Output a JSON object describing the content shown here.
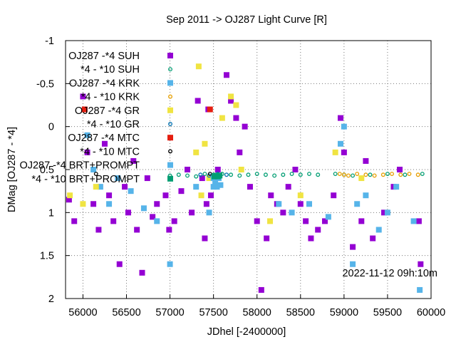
{
  "chart_data": {
    "type": "scatter",
    "title": "Sep 2011 ->   OJ287 Light Curve [R]",
    "xlabel": "JDhel [-2400000]",
    "ylabel": "DMag [OJ287 - *4]",
    "xlim": [
      55800,
      60000
    ],
    "ylim": [
      2,
      -1
    ],
    "y_inverted": true,
    "grid": true,
    "grid_style": "dotted",
    "legend_position": "top-left-inside",
    "x_ticks": [
      "56000",
      "56500",
      "57000",
      "57500",
      "58000",
      "58500",
      "59000",
      "59500",
      "60000"
    ],
    "y_ticks": [
      "-1",
      "-0.5",
      "0",
      "0.5",
      "1",
      "1.5",
      "2"
    ],
    "timestamp": "2022-11-12 09h:10m",
    "series": [
      {
        "name": "OJ287 -*4 SUH",
        "marker": "square",
        "color": "#9400d3",
        "points": [
          [
            55840,
            0.85
          ],
          [
            55900,
            1.1
          ],
          [
            56000,
            -0.35
          ],
          [
            56050,
            0.3
          ],
          [
            56120,
            0.9
          ],
          [
            56180,
            1.2
          ],
          [
            56250,
            0.2
          ],
          [
            56300,
            0.8
          ],
          [
            56350,
            1.1
          ],
          [
            56420,
            1.6
          ],
          [
            56480,
            0.7
          ],
          [
            56520,
            1.0
          ],
          [
            56580,
            0.4
          ],
          [
            56620,
            1.2
          ],
          [
            56680,
            1.7
          ],
          [
            56740,
            0.6
          ],
          [
            56800,
            1.05
          ],
          [
            56850,
            0.9
          ],
          [
            56950,
            0.8
          ],
          [
            56990,
            1.2
          ],
          [
            57050,
            1.1
          ],
          [
            57130,
            0.75
          ],
          [
            57200,
            0.5
          ],
          [
            57250,
            1.0
          ],
          [
            57320,
            -0.3
          ],
          [
            57370,
            0.6
          ],
          [
            57400,
            1.3
          ],
          [
            57420,
            0.9
          ],
          [
            57440,
            -0.2
          ],
          [
            57470,
            0.8
          ],
          [
            57550,
            0.5
          ],
          [
            57650,
            -0.6
          ],
          [
            57700,
            -0.3
          ],
          [
            57760,
            -0.1
          ],
          [
            57800,
            0.3
          ],
          [
            57860,
            0.0
          ],
          [
            57920,
            0.7
          ],
          [
            58000,
            1.1
          ],
          [
            58050,
            1.9
          ],
          [
            58110,
            1.3
          ],
          [
            58160,
            0.8
          ],
          [
            58230,
            0.9
          ],
          [
            58300,
            1.0
          ],
          [
            58360,
            0.7
          ],
          [
            58440,
            0.5
          ],
          [
            58500,
            0.9
          ],
          [
            58560,
            1.1
          ],
          [
            58620,
            1.3
          ],
          [
            58700,
            1.2
          ],
          [
            58780,
            1.1
          ],
          [
            58880,
            0.8
          ],
          [
            58960,
            -0.1
          ],
          [
            59000,
            0.3
          ],
          [
            59100,
            1.4
          ],
          [
            59200,
            1.1
          ],
          [
            59250,
            0.4
          ],
          [
            59330,
            1.3
          ],
          [
            59460,
            1.0
          ],
          [
            59570,
            0.7
          ],
          [
            59640,
            0.5
          ],
          [
            59860,
            1.1
          ],
          [
            59880,
            1.6
          ]
        ]
      },
      {
        "name": "*4 - *10 SUH",
        "marker": "circle-open",
        "color": "#009e73",
        "points": [
          [
            57000,
            0.57
          ],
          [
            57100,
            0.56
          ],
          [
            57200,
            0.57
          ],
          [
            57300,
            0.58
          ],
          [
            57400,
            0.55
          ],
          [
            57500,
            0.56
          ],
          [
            57600,
            0.55
          ],
          [
            57700,
            0.56
          ],
          [
            57800,
            0.57
          ],
          [
            57900,
            0.56
          ],
          [
            58000,
            0.55
          ],
          [
            58100,
            0.56
          ],
          [
            58200,
            0.57
          ],
          [
            58300,
            0.56
          ],
          [
            58400,
            0.55
          ],
          [
            58500,
            0.56
          ],
          [
            58600,
            0.55
          ],
          [
            58700,
            0.56
          ],
          [
            58900,
            0.55
          ],
          [
            59000,
            0.56
          ],
          [
            59100,
            0.57
          ],
          [
            59300,
            0.56
          ],
          [
            59500,
            0.55
          ],
          [
            59700,
            0.56
          ],
          [
            59900,
            0.55
          ]
        ]
      },
      {
        "name": "OJ287 -*4 KRK",
        "marker": "square",
        "color": "#56b4e9",
        "points": [
          [
            56050,
            0.1
          ],
          [
            56120,
            0.5
          ],
          [
            56200,
            0.7
          ],
          [
            56300,
            0.9
          ],
          [
            56400,
            0.6
          ],
          [
            56550,
            0.75
          ],
          [
            56700,
            0.95
          ],
          [
            56850,
            1.1
          ],
          [
            57000,
            1.6
          ],
          [
            57300,
            0.7
          ],
          [
            57450,
            1.0
          ],
          [
            57500,
            0.7
          ],
          [
            58250,
            0.9
          ],
          [
            58400,
            1.0
          ],
          [
            58600,
            0.9
          ],
          [
            58820,
            1.05
          ],
          [
            58960,
            0.2
          ],
          [
            59000,
            0.0
          ],
          [
            59100,
            1.6
          ],
          [
            59150,
            0.9
          ],
          [
            59250,
            0.8
          ],
          [
            59400,
            1.2
          ],
          [
            59500,
            1.0
          ],
          [
            59600,
            0.7
          ],
          [
            59800,
            1.1
          ],
          [
            59870,
            1.9
          ]
        ]
      },
      {
        "name": "*4 - *10 KRK",
        "marker": "circle-open",
        "color": "#e69f00",
        "points": [
          [
            58950,
            0.55
          ],
          [
            59000,
            0.56
          ],
          [
            59050,
            0.57
          ],
          [
            59150,
            0.55
          ],
          [
            59250,
            0.56
          ],
          [
            59350,
            0.57
          ],
          [
            59450,
            0.56
          ],
          [
            59550,
            0.55
          ],
          [
            59650,
            0.56
          ],
          [
            59750,
            0.55
          ],
          [
            59850,
            0.56
          ]
        ]
      },
      {
        "name": "OJ287 -*4 GR",
        "marker": "square",
        "color": "#f0e442",
        "points": [
          [
            55850,
            0.8
          ],
          [
            56000,
            0.9
          ],
          [
            56150,
            0.7
          ],
          [
            57300,
            0.3
          ],
          [
            57330,
            -0.7
          ],
          [
            57360,
            0.8
          ],
          [
            57400,
            0.2
          ],
          [
            57450,
            0.6
          ],
          [
            57600,
            -0.1
          ],
          [
            57700,
            -0.35
          ],
          [
            57760,
            -0.25
          ],
          [
            57820,
            0.5
          ],
          [
            58150,
            1.1
          ],
          [
            58500,
            0.8
          ],
          [
            58900,
            0.3
          ],
          [
            59200,
            0.6
          ]
        ]
      },
      {
        "name": "*4 - *10 GR",
        "marker": "circle-open",
        "color": "#0072b2",
        "points": [
          [
            57350,
            0.56
          ],
          [
            57450,
            0.57
          ],
          [
            57550,
            0.55
          ],
          [
            57650,
            0.56
          ]
        ]
      },
      {
        "name": "OJ287 -*4 MTC",
        "marker": "square",
        "color": "#e51e10",
        "points": [
          [
            56020,
            -0.2
          ],
          [
            57460,
            -0.2
          ]
        ]
      },
      {
        "name": "*4 - *10 MTC",
        "marker": "circle-open",
        "color": "#000000",
        "points": [
          [
            57460,
            0.55
          ],
          [
            56150,
            0.55
          ]
        ]
      },
      {
        "name": "OJ287 -*4 BRT+PROMPT",
        "marker": "square",
        "color": "#56b4e9",
        "points": [
          [
            57500,
            0.6
          ],
          [
            57520,
            0.65
          ],
          [
            57540,
            0.7
          ],
          [
            57560,
            0.6
          ],
          [
            57580,
            0.68
          ]
        ]
      },
      {
        "name": "*4 - *10 BRT+PROMPT",
        "marker": "square",
        "color": "#009e73",
        "points": [
          [
            57510,
            0.58
          ],
          [
            57530,
            0.57
          ],
          [
            57550,
            0.58
          ],
          [
            57570,
            0.57
          ]
        ]
      }
    ]
  }
}
